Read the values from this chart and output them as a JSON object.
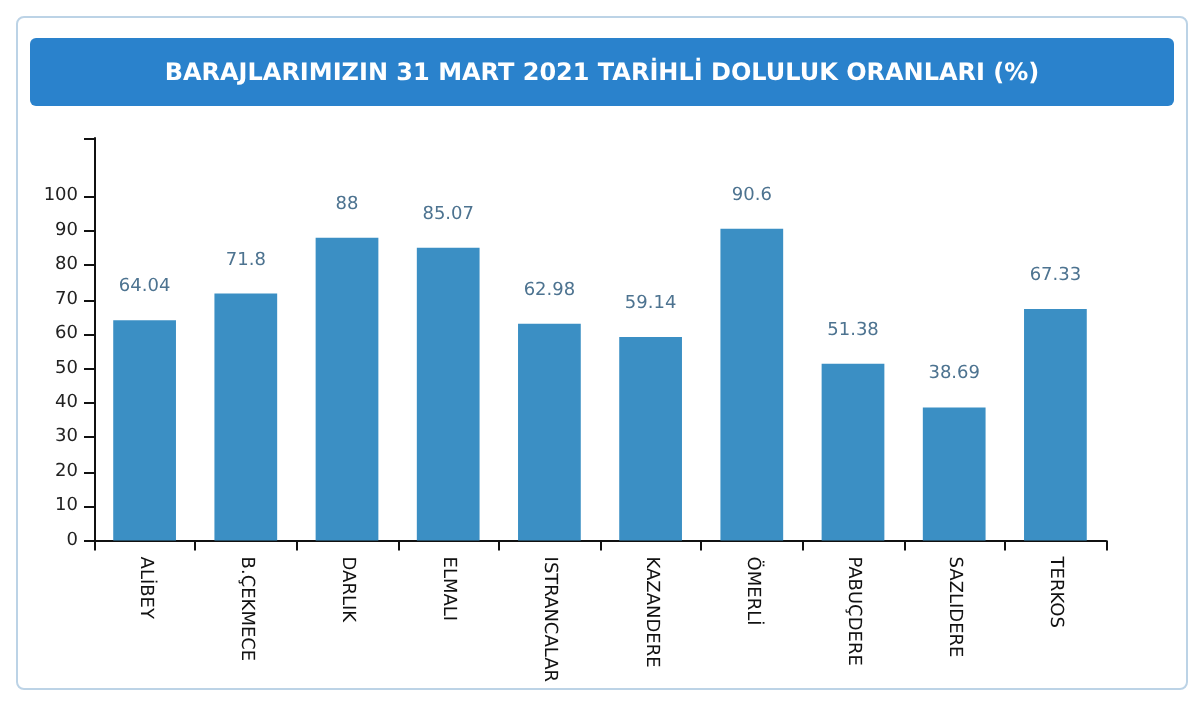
{
  "chart_data": {
    "type": "bar",
    "title": "BARAJLARIMIZIN 31 MART 2021 TARİHLİ DOLULUK ORANLARI (%)",
    "categories": [
      "ALİBEY",
      "B.ÇEKMECE",
      "DARLIK",
      "ELMALI",
      "ISTRANCALAR",
      "KAZANDERE",
      "ÖMERLİ",
      "PABUÇDERE",
      "SAZLIDERE",
      "TERKOS"
    ],
    "values": [
      64.04,
      71.8,
      88,
      85.07,
      62.98,
      59.14,
      90.6,
      51.38,
      38.69,
      67.33
    ],
    "color": "#3b8fc4",
    "ylim": [
      0,
      117
    ],
    "yticks": [
      0,
      10,
      20,
      30,
      40,
      50,
      60,
      70,
      80,
      90,
      100,
      {
        "value": 117,
        "label": null
      }
    ],
    "grid": false,
    "data_labels": true
  }
}
